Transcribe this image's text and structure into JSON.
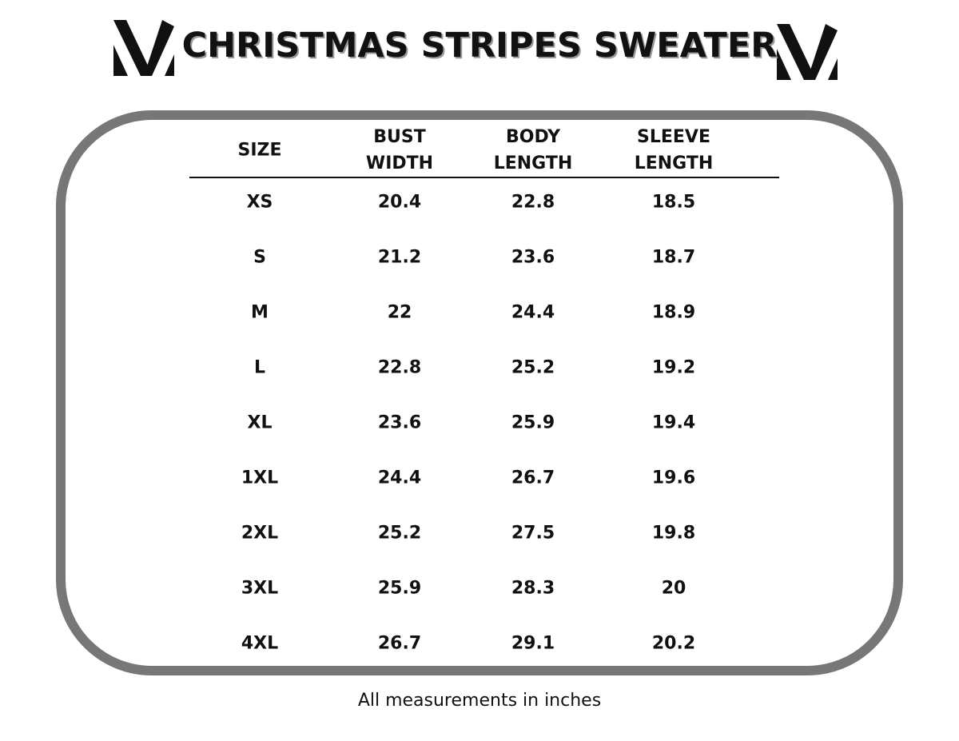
{
  "header": {
    "title": "CHRISTMAS STRIPES SWEATER"
  },
  "table": {
    "columns": [
      "SIZE",
      "BUST WIDTH",
      "BODY LENGTH",
      "SLEEVE LENGTH"
    ],
    "rows": [
      [
        "XS",
        20.4,
        22.8,
        18.5
      ],
      [
        "S",
        21.2,
        23.6,
        18.7
      ],
      [
        "M",
        22,
        24.4,
        18.9
      ],
      [
        "L",
        22.8,
        25.2,
        19.2
      ],
      [
        "XL",
        23.6,
        25.9,
        19.4
      ],
      [
        "1XL",
        24.4,
        26.7,
        19.6
      ],
      [
        "2XL",
        25.2,
        27.5,
        19.8
      ],
      [
        "3XL",
        25.9,
        28.3,
        20
      ],
      [
        "4XL",
        26.7,
        29.1,
        20.2
      ]
    ]
  },
  "footer": {
    "note": "All measurements in inches"
  }
}
